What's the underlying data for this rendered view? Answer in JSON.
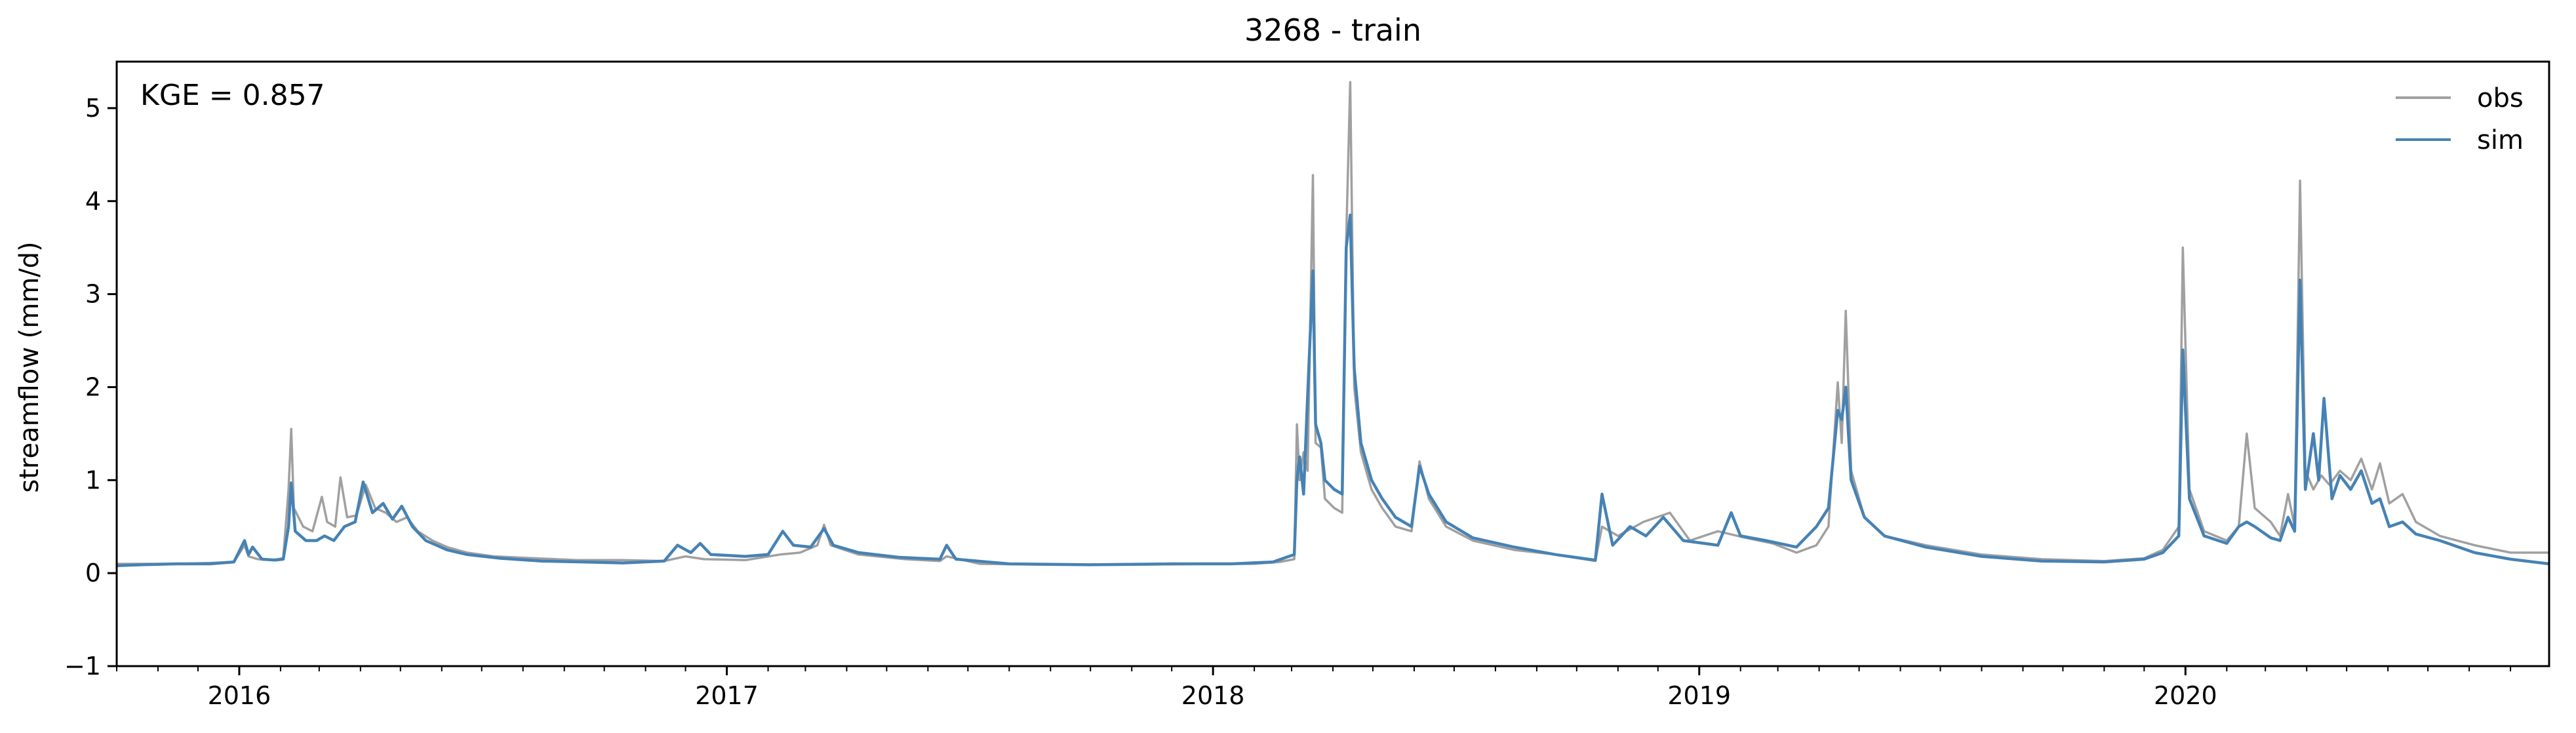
{
  "chart_data": {
    "type": "line",
    "title": "3268 - train",
    "xlabel": "",
    "ylabel": "streamflow (mm/d)",
    "annotation": "KGE = 0.857",
    "xlim": [
      "2015-10-01",
      "2020-09-30"
    ],
    "ylim": [
      -1,
      5.5
    ],
    "yticks": [
      -1,
      0,
      1,
      2,
      3,
      4,
      5
    ],
    "xticks": [
      {
        "date": "2016-01-01",
        "label": "2016"
      },
      {
        "date": "2017-01-01",
        "label": "2017"
      },
      {
        "date": "2018-01-01",
        "label": "2018"
      },
      {
        "date": "2019-01-01",
        "label": "2019"
      },
      {
        "date": "2020-01-01",
        "label": "2020"
      }
    ],
    "grid": false,
    "legend_position": "top-right",
    "series": [
      {
        "name": "obs",
        "color": "#a0a0a0",
        "points": [
          [
            "2015-10-01",
            0.1
          ],
          [
            "2015-10-20",
            0.1
          ],
          [
            "2015-11-15",
            0.1
          ],
          [
            "2015-12-10",
            0.11
          ],
          [
            "2015-12-28",
            0.12
          ],
          [
            "2016-01-05",
            0.3
          ],
          [
            "2016-01-08",
            0.18
          ],
          [
            "2016-01-15",
            0.15
          ],
          [
            "2016-01-25",
            0.14
          ],
          [
            "2016-02-03",
            0.16
          ],
          [
            "2016-02-07",
            0.9
          ],
          [
            "2016-02-09",
            1.55
          ],
          [
            "2016-02-11",
            0.7
          ],
          [
            "2016-02-18",
            0.5
          ],
          [
            "2016-02-25",
            0.45
          ],
          [
            "2016-03-03",
            0.82
          ],
          [
            "2016-03-07",
            0.55
          ],
          [
            "2016-03-13",
            0.5
          ],
          [
            "2016-03-17",
            1.03
          ],
          [
            "2016-03-22",
            0.6
          ],
          [
            "2016-03-29",
            0.62
          ],
          [
            "2016-04-05",
            0.95
          ],
          [
            "2016-04-12",
            0.7
          ],
          [
            "2016-04-20",
            0.65
          ],
          [
            "2016-04-28",
            0.55
          ],
          [
            "2016-05-06",
            0.6
          ],
          [
            "2016-05-14",
            0.45
          ],
          [
            "2016-05-25",
            0.35
          ],
          [
            "2016-06-05",
            0.28
          ],
          [
            "2016-06-20",
            0.22
          ],
          [
            "2016-07-10",
            0.18
          ],
          [
            "2016-08-10",
            0.16
          ],
          [
            "2016-09-10",
            0.14
          ],
          [
            "2016-10-15",
            0.14
          ],
          [
            "2016-11-15",
            0.13
          ],
          [
            "2016-12-01",
            0.18
          ],
          [
            "2016-12-15",
            0.15
          ],
          [
            "2017-01-15",
            0.14
          ],
          [
            "2017-02-10",
            0.2
          ],
          [
            "2017-02-25",
            0.22
          ],
          [
            "2017-03-10",
            0.3
          ],
          [
            "2017-03-15",
            0.52
          ],
          [
            "2017-03-20",
            0.3
          ],
          [
            "2017-04-10",
            0.2
          ],
          [
            "2017-05-15",
            0.15
          ],
          [
            "2017-06-10",
            0.13
          ],
          [
            "2017-06-15",
            0.18
          ],
          [
            "2017-07-10",
            0.1
          ],
          [
            "2017-09-01",
            0.09
          ],
          [
            "2017-11-01",
            0.09
          ],
          [
            "2018-01-01",
            0.1
          ],
          [
            "2018-02-01",
            0.1
          ],
          [
            "2018-02-20",
            0.12
          ],
          [
            "2018-03-03",
            0.15
          ],
          [
            "2018-03-05",
            1.6
          ],
          [
            "2018-03-07",
            1.0
          ],
          [
            "2018-03-10",
            1.3
          ],
          [
            "2018-03-13",
            1.1
          ],
          [
            "2018-03-17",
            4.28
          ],
          [
            "2018-03-19",
            1.4
          ],
          [
            "2018-03-23",
            1.35
          ],
          [
            "2018-03-26",
            0.8
          ],
          [
            "2018-04-02",
            0.7
          ],
          [
            "2018-04-08",
            0.65
          ],
          [
            "2018-04-11",
            3.6
          ],
          [
            "2018-04-14",
            5.28
          ],
          [
            "2018-04-17",
            2.0
          ],
          [
            "2018-04-22",
            1.3
          ],
          [
            "2018-04-30",
            0.9
          ],
          [
            "2018-05-08",
            0.7
          ],
          [
            "2018-05-18",
            0.5
          ],
          [
            "2018-05-30",
            0.45
          ],
          [
            "2018-06-05",
            1.2
          ],
          [
            "2018-06-12",
            0.8
          ],
          [
            "2018-06-25",
            0.5
          ],
          [
            "2018-07-15",
            0.35
          ],
          [
            "2018-08-15",
            0.25
          ],
          [
            "2018-09-15",
            0.2
          ],
          [
            "2018-10-15",
            0.13
          ],
          [
            "2018-10-20",
            0.5
          ],
          [
            "2018-11-01",
            0.4
          ],
          [
            "2018-11-20",
            0.55
          ],
          [
            "2018-12-10",
            0.65
          ],
          [
            "2018-12-25",
            0.35
          ],
          [
            "2019-01-15",
            0.45
          ],
          [
            "2019-02-05",
            0.38
          ],
          [
            "2019-02-25",
            0.32
          ],
          [
            "2019-03-15",
            0.22
          ],
          [
            "2019-03-30",
            0.3
          ],
          [
            "2019-04-08",
            0.5
          ],
          [
            "2019-04-15",
            2.05
          ],
          [
            "2019-04-18",
            1.4
          ],
          [
            "2019-04-21",
            2.82
          ],
          [
            "2019-04-25",
            1.1
          ],
          [
            "2019-05-05",
            0.6
          ],
          [
            "2019-05-20",
            0.4
          ],
          [
            "2019-06-20",
            0.3
          ],
          [
            "2019-08-01",
            0.2
          ],
          [
            "2019-09-15",
            0.15
          ],
          [
            "2019-11-01",
            0.13
          ],
          [
            "2019-12-01",
            0.16
          ],
          [
            "2019-12-15",
            0.25
          ],
          [
            "2019-12-27",
            0.5
          ],
          [
            "2019-12-30",
            3.5
          ],
          [
            "2020-01-04",
            0.9
          ],
          [
            "2020-01-15",
            0.45
          ],
          [
            "2020-02-01",
            0.35
          ],
          [
            "2020-02-10",
            0.5
          ],
          [
            "2020-02-16",
            1.5
          ],
          [
            "2020-02-22",
            0.7
          ],
          [
            "2020-03-05",
            0.55
          ],
          [
            "2020-03-12",
            0.4
          ],
          [
            "2020-03-18",
            0.85
          ],
          [
            "2020-03-23",
            0.5
          ],
          [
            "2020-03-27",
            4.22
          ],
          [
            "2020-03-31",
            1.1
          ],
          [
            "2020-04-06",
            0.9
          ],
          [
            "2020-04-12",
            1.05
          ],
          [
            "2020-04-18",
            0.95
          ],
          [
            "2020-04-26",
            1.1
          ],
          [
            "2020-05-04",
            1.0
          ],
          [
            "2020-05-12",
            1.23
          ],
          [
            "2020-05-20",
            0.9
          ],
          [
            "2020-05-26",
            1.18
          ],
          [
            "2020-06-02",
            0.75
          ],
          [
            "2020-06-12",
            0.85
          ],
          [
            "2020-06-22",
            0.55
          ],
          [
            "2020-07-10",
            0.4
          ],
          [
            "2020-08-05",
            0.3
          ],
          [
            "2020-09-01",
            0.22
          ],
          [
            "2020-09-30",
            0.22
          ]
        ]
      },
      {
        "name": "sim",
        "color": "#4682b4",
        "points": [
          [
            "2015-10-01",
            0.08
          ],
          [
            "2015-10-20",
            0.09
          ],
          [
            "2015-11-15",
            0.1
          ],
          [
            "2015-12-10",
            0.1
          ],
          [
            "2015-12-28",
            0.12
          ],
          [
            "2016-01-05",
            0.35
          ],
          [
            "2016-01-08",
            0.2
          ],
          [
            "2016-01-11",
            0.28
          ],
          [
            "2016-01-18",
            0.15
          ],
          [
            "2016-01-28",
            0.14
          ],
          [
            "2016-02-03",
            0.15
          ],
          [
            "2016-02-07",
            0.5
          ],
          [
            "2016-02-09",
            0.97
          ],
          [
            "2016-02-12",
            0.45
          ],
          [
            "2016-02-20",
            0.35
          ],
          [
            "2016-02-28",
            0.35
          ],
          [
            "2016-03-05",
            0.4
          ],
          [
            "2016-03-12",
            0.35
          ],
          [
            "2016-03-20",
            0.5
          ],
          [
            "2016-03-28",
            0.55
          ],
          [
            "2016-04-03",
            0.98
          ],
          [
            "2016-04-10",
            0.65
          ],
          [
            "2016-04-18",
            0.75
          ],
          [
            "2016-04-25",
            0.58
          ],
          [
            "2016-05-02",
            0.72
          ],
          [
            "2016-05-10",
            0.5
          ],
          [
            "2016-05-20",
            0.35
          ],
          [
            "2016-06-05",
            0.25
          ],
          [
            "2016-06-20",
            0.2
          ],
          [
            "2016-07-15",
            0.16
          ],
          [
            "2016-08-15",
            0.13
          ],
          [
            "2016-09-15",
            0.12
          ],
          [
            "2016-10-15",
            0.11
          ],
          [
            "2016-11-15",
            0.13
          ],
          [
            "2016-11-25",
            0.3
          ],
          [
            "2016-12-05",
            0.22
          ],
          [
            "2016-12-12",
            0.32
          ],
          [
            "2016-12-20",
            0.2
          ],
          [
            "2017-01-15",
            0.18
          ],
          [
            "2017-02-01",
            0.2
          ],
          [
            "2017-02-12",
            0.45
          ],
          [
            "2017-02-20",
            0.3
          ],
          [
            "2017-03-05",
            0.28
          ],
          [
            "2017-03-15",
            0.48
          ],
          [
            "2017-03-22",
            0.3
          ],
          [
            "2017-04-10",
            0.22
          ],
          [
            "2017-05-10",
            0.17
          ],
          [
            "2017-06-10",
            0.15
          ],
          [
            "2017-06-15",
            0.3
          ],
          [
            "2017-06-22",
            0.15
          ],
          [
            "2017-08-01",
            0.1
          ],
          [
            "2017-10-01",
            0.09
          ],
          [
            "2017-12-01",
            0.1
          ],
          [
            "2018-01-15",
            0.1
          ],
          [
            "2018-02-15",
            0.12
          ],
          [
            "2018-03-03",
            0.2
          ],
          [
            "2018-03-05",
            1.0
          ],
          [
            "2018-03-07",
            1.25
          ],
          [
            "2018-03-10",
            0.85
          ],
          [
            "2018-03-13",
            1.9
          ],
          [
            "2018-03-17",
            3.25
          ],
          [
            "2018-03-19",
            1.6
          ],
          [
            "2018-03-23",
            1.4
          ],
          [
            "2018-03-26",
            1.0
          ],
          [
            "2018-04-02",
            0.9
          ],
          [
            "2018-04-08",
            0.85
          ],
          [
            "2018-04-11",
            3.5
          ],
          [
            "2018-04-14",
            3.85
          ],
          [
            "2018-04-17",
            2.2
          ],
          [
            "2018-04-22",
            1.4
          ],
          [
            "2018-04-30",
            1.0
          ],
          [
            "2018-05-08",
            0.8
          ],
          [
            "2018-05-18",
            0.6
          ],
          [
            "2018-05-30",
            0.5
          ],
          [
            "2018-06-05",
            1.15
          ],
          [
            "2018-06-12",
            0.85
          ],
          [
            "2018-06-25",
            0.55
          ],
          [
            "2018-07-15",
            0.38
          ],
          [
            "2018-08-15",
            0.28
          ],
          [
            "2018-09-15",
            0.2
          ],
          [
            "2018-10-15",
            0.14
          ],
          [
            "2018-10-20",
            0.85
          ],
          [
            "2018-10-28",
            0.3
          ],
          [
            "2018-11-10",
            0.5
          ],
          [
            "2018-11-22",
            0.4
          ],
          [
            "2018-12-05",
            0.6
          ],
          [
            "2018-12-20",
            0.35
          ],
          [
            "2019-01-15",
            0.3
          ],
          [
            "2019-01-25",
            0.65
          ],
          [
            "2019-02-01",
            0.4
          ],
          [
            "2019-02-20",
            0.35
          ],
          [
            "2019-03-15",
            0.28
          ],
          [
            "2019-03-30",
            0.5
          ],
          [
            "2019-04-08",
            0.7
          ],
          [
            "2019-04-15",
            1.75
          ],
          [
            "2019-04-18",
            1.65
          ],
          [
            "2019-04-21",
            2.0
          ],
          [
            "2019-04-25",
            1.0
          ],
          [
            "2019-05-05",
            0.6
          ],
          [
            "2019-05-20",
            0.4
          ],
          [
            "2019-06-20",
            0.28
          ],
          [
            "2019-08-01",
            0.18
          ],
          [
            "2019-09-15",
            0.13
          ],
          [
            "2019-11-01",
            0.12
          ],
          [
            "2019-12-01",
            0.15
          ],
          [
            "2019-12-15",
            0.22
          ],
          [
            "2019-12-27",
            0.4
          ],
          [
            "2019-12-30",
            2.4
          ],
          [
            "2020-01-04",
            0.8
          ],
          [
            "2020-01-15",
            0.4
          ],
          [
            "2020-02-01",
            0.32
          ],
          [
            "2020-02-10",
            0.5
          ],
          [
            "2020-02-16",
            0.55
          ],
          [
            "2020-02-22",
            0.5
          ],
          [
            "2020-03-05",
            0.38
          ],
          [
            "2020-03-12",
            0.35
          ],
          [
            "2020-03-18",
            0.6
          ],
          [
            "2020-03-23",
            0.45
          ],
          [
            "2020-03-27",
            3.15
          ],
          [
            "2020-03-31",
            0.9
          ],
          [
            "2020-04-06",
            1.5
          ],
          [
            "2020-04-10",
            1.0
          ],
          [
            "2020-04-14",
            1.88
          ],
          [
            "2020-04-20",
            0.8
          ],
          [
            "2020-04-26",
            1.05
          ],
          [
            "2020-05-04",
            0.9
          ],
          [
            "2020-05-12",
            1.1
          ],
          [
            "2020-05-20",
            0.75
          ],
          [
            "2020-05-26",
            0.8
          ],
          [
            "2020-06-02",
            0.5
          ],
          [
            "2020-06-12",
            0.55
          ],
          [
            "2020-06-22",
            0.42
          ],
          [
            "2020-07-10",
            0.35
          ],
          [
            "2020-08-05",
            0.22
          ],
          [
            "2020-09-01",
            0.15
          ],
          [
            "2020-09-30",
            0.1
          ]
        ]
      }
    ]
  }
}
